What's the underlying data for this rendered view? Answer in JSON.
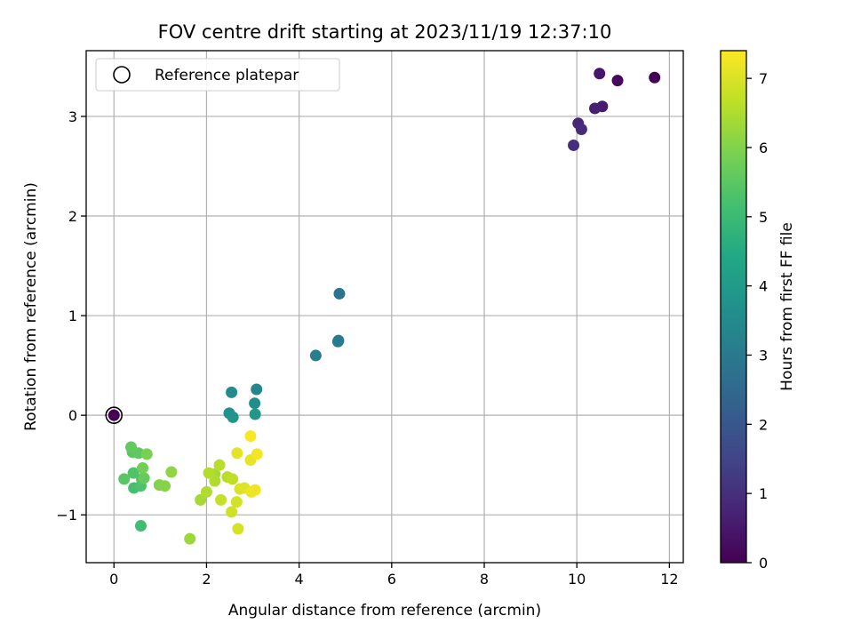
{
  "chart_data": {
    "type": "scatter",
    "title": "FOV centre drift starting at 2023/11/19 12:37:10",
    "xlabel": "Angular distance from reference (arcmin)",
    "ylabel": "Rotation from reference (arcmin)",
    "xlim": [
      -0.6,
      12.3
    ],
    "ylim": [
      -1.48,
      3.66
    ],
    "xticks": [
      0,
      2,
      4,
      6,
      8,
      10,
      12
    ],
    "yticks": [
      -1,
      0,
      1,
      2,
      3
    ],
    "xtick_labels": [
      "0",
      "2",
      "4",
      "6",
      "8",
      "10",
      "12"
    ],
    "ytick_labels": [
      "−1",
      "0",
      "1",
      "2",
      "3"
    ],
    "grid": true,
    "legend": {
      "position": "top-left",
      "entries": [
        {
          "label": "Reference platepar",
          "marker": "open-circle"
        }
      ]
    },
    "reference_point": {
      "x": 0,
      "y": 0
    },
    "colorbar": {
      "label": "Hours from first FF file",
      "colormap": "viridis",
      "range": [
        0,
        7.4
      ],
      "ticks": [
        0,
        1,
        2,
        3,
        4,
        5,
        6,
        7
      ],
      "tick_labels": [
        "0",
        "1",
        "2",
        "3",
        "4",
        "5",
        "6",
        "7"
      ]
    },
    "points": [
      {
        "x": 0.0,
        "y": 0.0,
        "h": 0.0
      },
      {
        "x": 11.68,
        "y": 3.39,
        "h": 0.05
      },
      {
        "x": 10.88,
        "y": 3.36,
        "h": 0.15
      },
      {
        "x": 10.49,
        "y": 3.43,
        "h": 0.45
      },
      {
        "x": 10.55,
        "y": 3.1,
        "h": 0.55
      },
      {
        "x": 10.39,
        "y": 3.08,
        "h": 0.65
      },
      {
        "x": 10.03,
        "y": 2.93,
        "h": 0.8
      },
      {
        "x": 10.1,
        "y": 2.87,
        "h": 0.9
      },
      {
        "x": 9.93,
        "y": 2.71,
        "h": 1.0
      },
      {
        "x": 4.87,
        "y": 1.22,
        "h": 2.8
      },
      {
        "x": 4.85,
        "y": 0.75,
        "h": 2.95
      },
      {
        "x": 4.84,
        "y": 0.74,
        "h": 3.0
      },
      {
        "x": 4.36,
        "y": 0.6,
        "h": 3.1
      },
      {
        "x": 3.08,
        "y": 0.26,
        "h": 3.4
      },
      {
        "x": 2.54,
        "y": 0.23,
        "h": 3.5
      },
      {
        "x": 3.04,
        "y": 0.12,
        "h": 3.6
      },
      {
        "x": 2.49,
        "y": 0.02,
        "h": 3.7
      },
      {
        "x": 2.57,
        "y": -0.02,
        "h": 3.8
      },
      {
        "x": 3.05,
        "y": 0.01,
        "h": 3.9
      },
      {
        "x": 0.58,
        "y": -1.11,
        "h": 5.1
      },
      {
        "x": 0.43,
        "y": -0.73,
        "h": 5.2
      },
      {
        "x": 0.58,
        "y": -0.71,
        "h": 5.3
      },
      {
        "x": 0.42,
        "y": -0.58,
        "h": 5.35
      },
      {
        "x": 0.6,
        "y": -0.64,
        "h": 5.4
      },
      {
        "x": 0.22,
        "y": -0.64,
        "h": 5.45
      },
      {
        "x": 0.4,
        "y": -0.37,
        "h": 5.5
      },
      {
        "x": 0.53,
        "y": -0.38,
        "h": 5.55
      },
      {
        "x": 0.37,
        "y": -0.32,
        "h": 5.6
      },
      {
        "x": 0.65,
        "y": -0.63,
        "h": 5.65
      },
      {
        "x": 0.62,
        "y": -0.53,
        "h": 5.8
      },
      {
        "x": 0.71,
        "y": -0.39,
        "h": 5.9
      },
      {
        "x": 0.98,
        "y": -0.7,
        "h": 6.0
      },
      {
        "x": 1.1,
        "y": -0.71,
        "h": 6.05
      },
      {
        "x": 1.24,
        "y": -0.57,
        "h": 6.15
      },
      {
        "x": 1.64,
        "y": -1.24,
        "h": 6.3
      },
      {
        "x": 1.87,
        "y": -0.85,
        "h": 6.4
      },
      {
        "x": 2.18,
        "y": -0.59,
        "h": 6.4
      },
      {
        "x": 2.0,
        "y": -0.77,
        "h": 6.5
      },
      {
        "x": 2.18,
        "y": -0.66,
        "h": 6.5
      },
      {
        "x": 2.05,
        "y": -0.58,
        "h": 6.55
      },
      {
        "x": 2.28,
        "y": -0.5,
        "h": 6.6
      },
      {
        "x": 2.45,
        "y": -0.62,
        "h": 6.6
      },
      {
        "x": 2.56,
        "y": -0.64,
        "h": 6.7
      },
      {
        "x": 2.31,
        "y": -0.85,
        "h": 6.75
      },
      {
        "x": 2.54,
        "y": -0.97,
        "h": 6.85
      },
      {
        "x": 2.65,
        "y": -0.87,
        "h": 6.9
      },
      {
        "x": 2.68,
        "y": -1.14,
        "h": 6.95
      },
      {
        "x": 2.72,
        "y": -0.74,
        "h": 7.0
      },
      {
        "x": 2.82,
        "y": -0.73,
        "h": 7.05
      },
      {
        "x": 2.66,
        "y": -0.38,
        "h": 7.1
      },
      {
        "x": 2.95,
        "y": -0.45,
        "h": 7.15
      },
      {
        "x": 2.97,
        "y": -0.77,
        "h": 7.2
      },
      {
        "x": 3.05,
        "y": -0.75,
        "h": 7.25
      },
      {
        "x": 3.09,
        "y": -0.39,
        "h": 7.3
      },
      {
        "x": 2.95,
        "y": -0.21,
        "h": 7.35
      }
    ]
  }
}
